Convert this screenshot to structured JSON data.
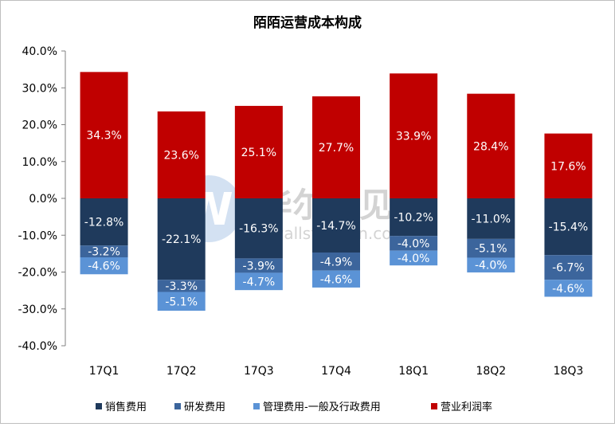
{
  "chart_data": {
    "type": "bar",
    "stacked": true,
    "title": "陌陌运营成本构成",
    "xlabel": "",
    "ylabel": "",
    "ylim": [
      -40,
      40
    ],
    "ytick_labels": [
      "40.0%",
      "30.0%",
      "20.0%",
      "10.0%",
      "0.0%",
      "-10.0%",
      "-20.0%",
      "-30.0%",
      "-40.0%"
    ],
    "categories": [
      "17Q1",
      "17Q2",
      "17Q3",
      "17Q4",
      "18Q1",
      "18Q2",
      "18Q3"
    ],
    "series": [
      {
        "name": "销售费用",
        "color": "#1f3a5c",
        "values": [
          -12.8,
          -22.1,
          -16.3,
          -14.7,
          -10.2,
          -11.0,
          -15.4
        ],
        "labels": [
          "-12.8%",
          "-22.1%",
          "-16.3%",
          "-14.7%",
          "-10.2%",
          "-11.0%",
          "-15.4%"
        ]
      },
      {
        "name": "研发费用",
        "color": "#3c659c",
        "values": [
          -3.2,
          -3.3,
          -3.9,
          -4.9,
          -4.0,
          -5.1,
          -6.7
        ],
        "labels": [
          "-3.2%",
          "-3.3%",
          "-3.9%",
          "-4.9%",
          "-4.0%",
          "-5.1%",
          "-6.7%"
        ]
      },
      {
        "name": "管理费用-一般及行政费用",
        "color": "#5b93d6",
        "values": [
          -4.6,
          -5.1,
          -4.7,
          -4.6,
          -4.0,
          -4.0,
          -4.6
        ],
        "labels": [
          "-4.6%",
          "-5.1%",
          "-4.7%",
          "-4.6%",
          "-4.0%",
          "-4.0%",
          "-4.6%"
        ]
      },
      {
        "name": "营业利润率",
        "color": "#c00000",
        "values": [
          34.3,
          23.6,
          25.1,
          27.7,
          33.9,
          28.4,
          17.6
        ],
        "labels": [
          "34.3%",
          "23.6%",
          "25.1%",
          "27.7%",
          "33.9%",
          "28.4%",
          "17.6%"
        ]
      }
    ],
    "legend_position": "bottom",
    "grid": false,
    "watermark": {
      "text_cn": "华尔街见闻",
      "text_en": "wallstreetcn.com",
      "logo_letter": "W"
    }
  }
}
